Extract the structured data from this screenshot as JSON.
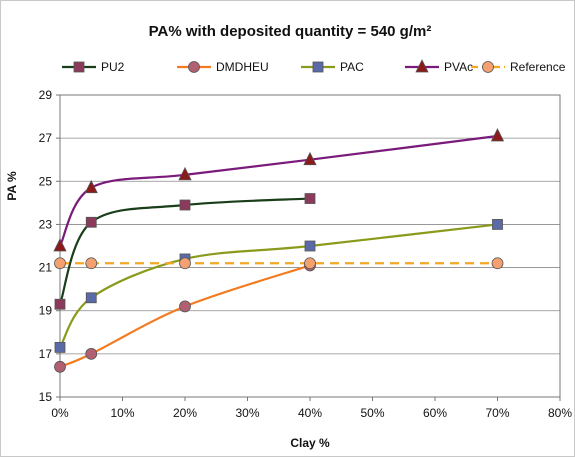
{
  "chart_data": {
    "type": "line",
    "title": "PA% with deposited quantity = 540 g/m²",
    "xlabel": "Clay %",
    "ylabel": "PA %",
    "x_ticks": [
      "0%",
      "10%",
      "20%",
      "30%",
      "40%",
      "50%",
      "60%",
      "70%",
      "80%"
    ],
    "y_ticks": [
      "15",
      "17",
      "19",
      "21",
      "23",
      "25",
      "27",
      "29"
    ],
    "xlim": [
      0,
      80
    ],
    "ylim": [
      15,
      29
    ],
    "grid": "horizontal",
    "legend_position": "top",
    "series": [
      {
        "name": "PU2",
        "color": "#1a3d1a",
        "marker": "square",
        "marker_color": "#8b3a5c",
        "x": [
          0,
          5,
          20,
          40
        ],
        "y": [
          19.3,
          23.1,
          23.9,
          24.2
        ]
      },
      {
        "name": "DMDHEU",
        "color": "#f47a20",
        "marker": "circle",
        "marker_color": "#b06070",
        "x": [
          0,
          5,
          20,
          40
        ],
        "y": [
          16.4,
          17.0,
          19.2,
          21.1
        ]
      },
      {
        "name": "PAC",
        "color": "#8a9a1a",
        "marker": "square",
        "marker_color": "#5a6aa8",
        "x": [
          0,
          5,
          20,
          40,
          70
        ],
        "y": [
          17.3,
          19.6,
          21.4,
          22.0,
          23.0
        ]
      },
      {
        "name": "PVAc",
        "color": "#7a1a7a",
        "marker": "triangle",
        "marker_color": "#8b1a1a",
        "x": [
          0,
          5,
          20,
          40,
          70
        ],
        "y": [
          22.0,
          24.7,
          25.3,
          26.0,
          27.1
        ]
      },
      {
        "name": "Reference",
        "color": "#f5a623",
        "dashed": true,
        "marker": "circle",
        "marker_color": "#f5a070",
        "x": [
          0,
          5,
          20,
          40,
          70
        ],
        "y": [
          21.2,
          21.2,
          21.2,
          21.2,
          21.2
        ]
      }
    ]
  }
}
